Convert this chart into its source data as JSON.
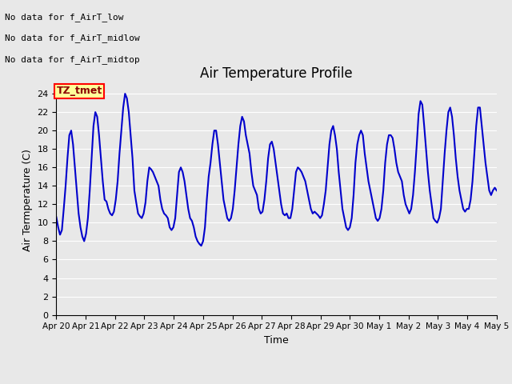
{
  "title": "Air Temperature Profile",
  "xlabel": "Time",
  "ylabel": "Air Termperature (C)",
  "line_color": "#0000cc",
  "line_width": 1.5,
  "background_color": "#e8e8e8",
  "plot_bg_color": "#e8e8e8",
  "ylim": [
    0,
    25
  ],
  "yticks": [
    0,
    2,
    4,
    6,
    8,
    10,
    12,
    14,
    16,
    18,
    20,
    22,
    24
  ],
  "legend_line_color": "#0000cc",
  "annotations_text": [
    "No data for f_AirT_low",
    "No data for f_AirT_midlow",
    "No data for f_AirT_midtop"
  ],
  "tz_label": "TZ_tmet",
  "x_tick_labels": [
    "Apr 20",
    "Apr 21",
    "Apr 22",
    "Apr 23",
    "Apr 24",
    "Apr 25",
    "Apr 26",
    "Apr 27",
    "Apr 28",
    "Apr 29",
    "Apr 30",
    "May 1",
    "May 2",
    "May 3",
    "May 4",
    "May 5"
  ],
  "temperature_data": [
    10.6,
    9.5,
    8.7,
    9.2,
    11.5,
    14.0,
    17.0,
    19.5,
    20.0,
    18.5,
    16.0,
    13.5,
    11.0,
    9.5,
    8.5,
    8.0,
    8.8,
    10.5,
    13.5,
    17.0,
    20.5,
    22.0,
    21.5,
    19.5,
    17.0,
    14.5,
    12.5,
    12.3,
    11.5,
    11.0,
    10.8,
    11.2,
    12.5,
    14.5,
    17.5,
    20.0,
    22.5,
    24.0,
    23.5,
    22.0,
    19.5,
    17.0,
    13.5,
    12.2,
    11.0,
    10.7,
    10.5,
    11.0,
    12.2,
    14.5,
    16.0,
    15.8,
    15.5,
    15.0,
    14.5,
    14.0,
    12.5,
    11.5,
    11.0,
    10.8,
    10.5,
    9.5,
    9.2,
    9.5,
    10.5,
    13.0,
    15.5,
    16.0,
    15.5,
    14.5,
    13.0,
    11.5,
    10.5,
    10.2,
    9.5,
    8.5,
    8.0,
    7.7,
    7.5,
    8.0,
    9.5,
    12.5,
    15.0,
    16.5,
    18.5,
    20.0,
    20.0,
    18.5,
    16.5,
    14.5,
    12.5,
    11.5,
    10.5,
    10.2,
    10.5,
    11.5,
    13.5,
    16.0,
    18.5,
    20.5,
    21.5,
    21.0,
    19.5,
    18.5,
    17.5,
    15.5,
    14.0,
    13.5,
    13.0,
    11.5,
    11.0,
    11.2,
    12.5,
    14.5,
    17.0,
    18.5,
    18.8,
    18.0,
    16.5,
    15.0,
    13.5,
    12.0,
    11.0,
    10.8,
    11.0,
    10.5,
    10.5,
    11.5,
    13.5,
    15.5,
    16.0,
    15.8,
    15.5,
    15.0,
    14.5,
    13.5,
    12.5,
    11.5,
    11.0,
    11.2,
    11.0,
    10.8,
    10.5,
    10.8,
    12.0,
    13.5,
    16.0,
    18.5,
    20.0,
    20.5,
    19.5,
    18.0,
    15.5,
    13.5,
    11.5,
    10.5,
    9.5,
    9.2,
    9.5,
    10.5,
    13.0,
    16.5,
    18.5,
    19.5,
    20.0,
    19.5,
    17.5,
    16.0,
    14.5,
    13.5,
    12.5,
    11.5,
    10.5,
    10.2,
    10.5,
    11.5,
    13.5,
    16.5,
    18.5,
    19.5,
    19.5,
    19.2,
    18.0,
    16.5,
    15.5,
    15.0,
    14.5,
    13.0,
    12.0,
    11.5,
    11.0,
    11.5,
    13.0,
    15.5,
    18.5,
    21.8,
    23.2,
    22.8,
    20.5,
    18.0,
    15.5,
    13.5,
    12.0,
    10.5,
    10.2,
    10.0,
    10.5,
    11.5,
    14.5,
    17.5,
    20.0,
    22.0,
    22.5,
    21.5,
    19.5,
    17.0,
    15.0,
    13.5,
    12.5,
    11.5,
    11.2,
    11.5,
    11.5,
    12.5,
    14.5,
    17.5,
    20.5,
    22.5,
    22.5,
    20.5,
    18.5,
    16.5,
    15.0,
    13.5,
    13.0,
    13.5,
    13.8,
    13.5
  ]
}
